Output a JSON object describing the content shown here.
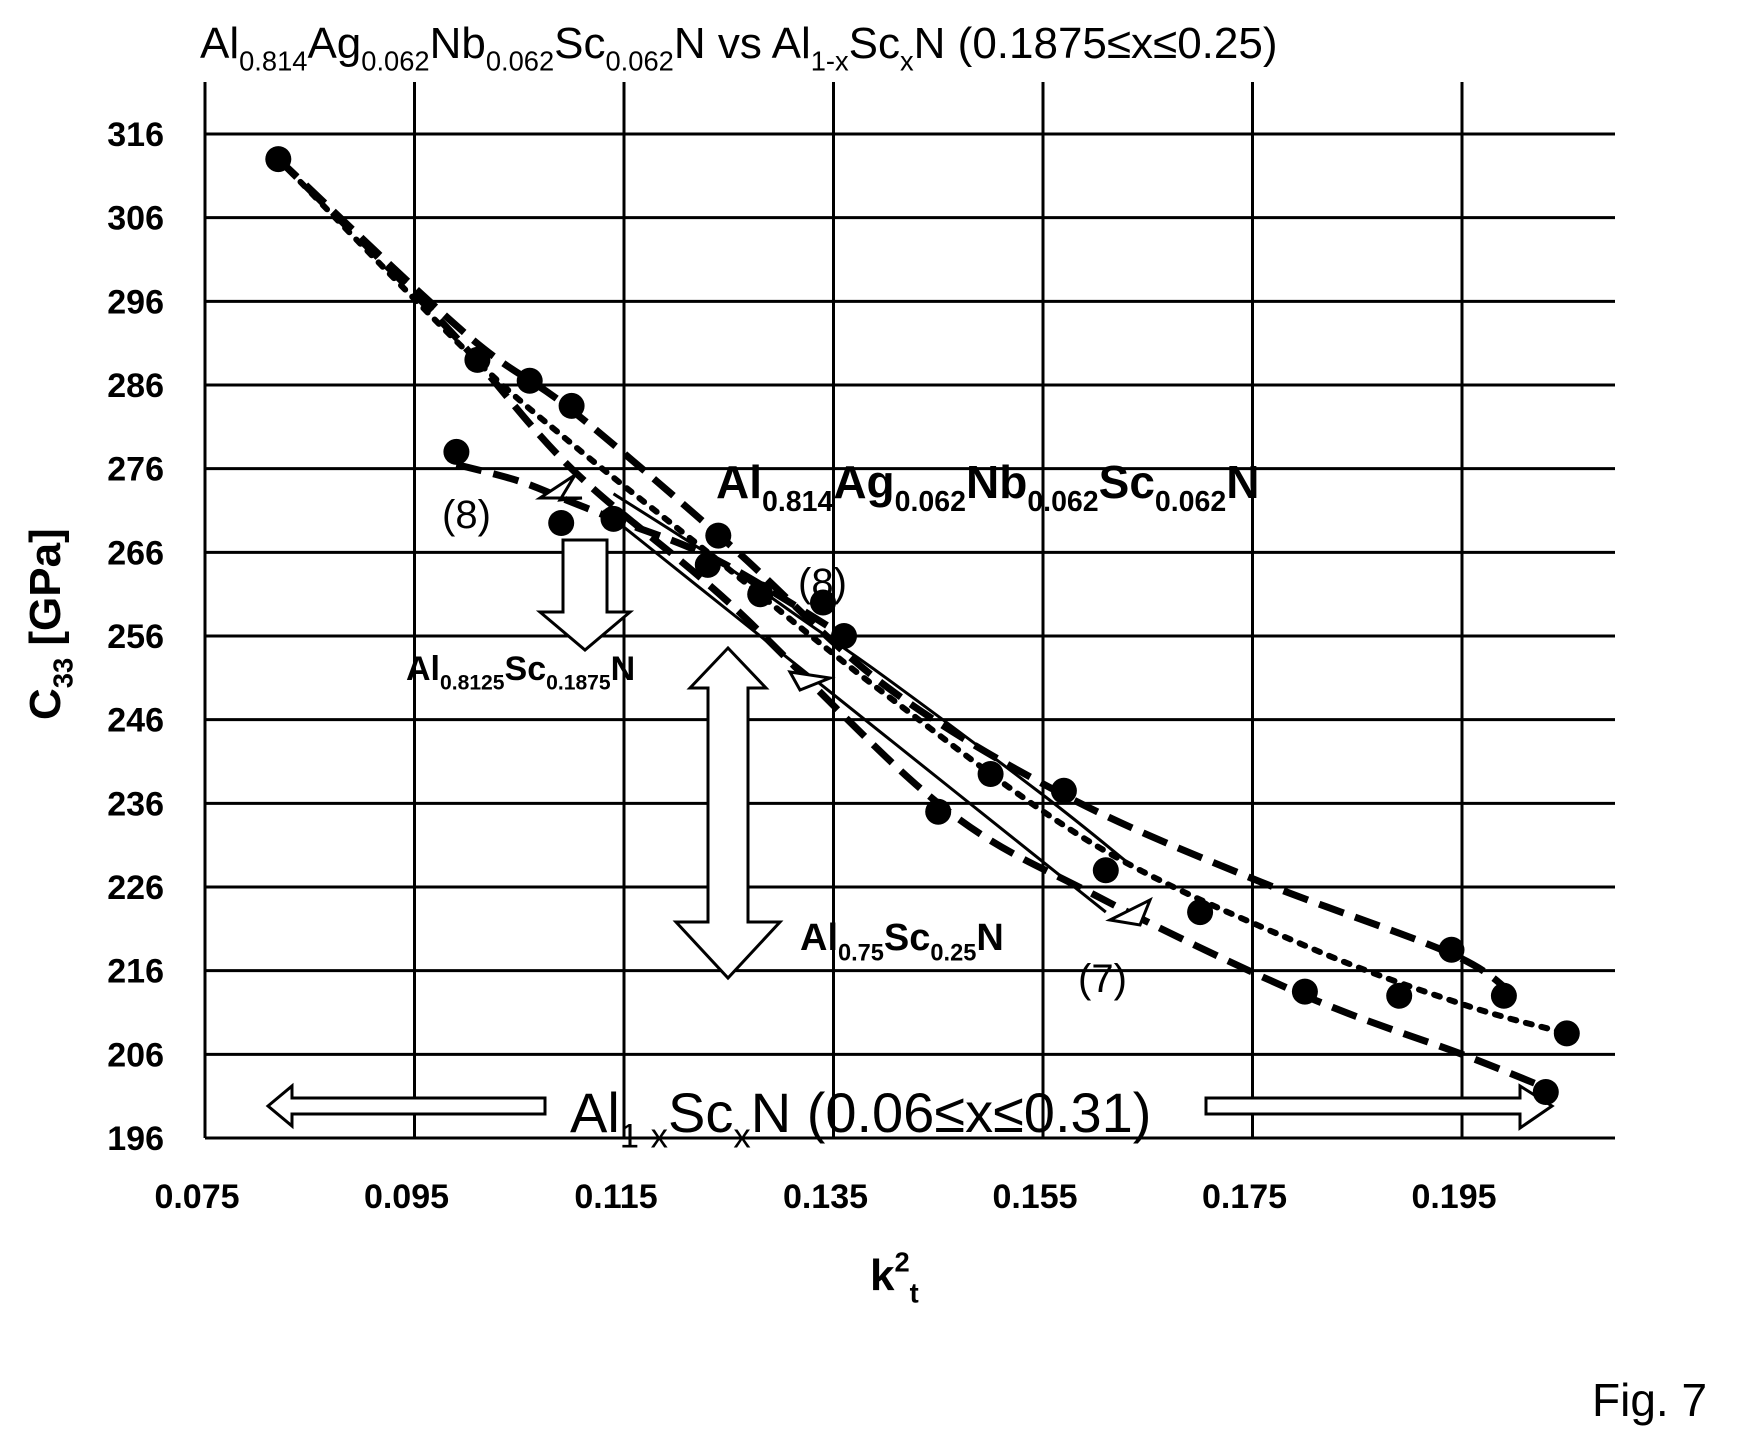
{
  "chart_data": {
    "type": "scatter",
    "title": {
      "parts": [
        {
          "t": "Al",
          "s": ""
        },
        {
          "t": "0.814",
          "s": "sub"
        },
        {
          "t": "Ag",
          "s": ""
        },
        {
          "t": "0.062",
          "s": "sub"
        },
        {
          "t": "Nb",
          "s": ""
        },
        {
          "t": "0.062",
          "s": "sub"
        },
        {
          "t": "Sc",
          "s": ""
        },
        {
          "t": "0.062",
          "s": "sub"
        },
        {
          "t": "N vs Al",
          "s": ""
        },
        {
          "t": "1-x",
          "s": "sub"
        },
        {
          "t": "Sc",
          "s": ""
        },
        {
          "t": "x",
          "s": "sub"
        },
        {
          "t": "N (0.1875≤x≤0.25)",
          "s": ""
        }
      ]
    },
    "xlabel": {
      "parts": [
        {
          "t": "k",
          "s": ""
        },
        {
          "t": "2",
          "s": "sup"
        },
        {
          "t": "t",
          "s": "sub"
        }
      ]
    },
    "ylabel": {
      "parts": [
        {
          "t": "C",
          "s": ""
        },
        {
          "t": "33",
          "s": "sub"
        },
        {
          "t": " [GPa]",
          "s": ""
        }
      ]
    },
    "xlim": [
      0.075,
      0.21
    ],
    "ylim": [
      196,
      316
    ],
    "xticks": [
      "0.075",
      "0.095",
      "0.115",
      "0.135",
      "0.155",
      "0.175",
      "0.195"
    ],
    "xtick_values": [
      0.075,
      0.095,
      0.115,
      0.135,
      0.155,
      0.175,
      0.195
    ],
    "yticks": [
      "196",
      "206",
      "216",
      "226",
      "236",
      "246",
      "256",
      "266",
      "276",
      "286",
      "296",
      "306",
      "316"
    ],
    "ytick_values": [
      196,
      206,
      216,
      226,
      236,
      246,
      256,
      266,
      276,
      286,
      296,
      306,
      316
    ],
    "grid": true,
    "points": [
      [
        0.082,
        313
      ],
      [
        0.101,
        289
      ],
      [
        0.106,
        286.5
      ],
      [
        0.11,
        283.5
      ],
      [
        0.099,
        278
      ],
      [
        0.109,
        269.5
      ],
      [
        0.114,
        270
      ],
      [
        0.124,
        268
      ],
      [
        0.123,
        264.5
      ],
      [
        0.128,
        261
      ],
      [
        0.134,
        260
      ],
      [
        0.136,
        256
      ],
      [
        0.145,
        235
      ],
      [
        0.15,
        239.5
      ],
      [
        0.157,
        237.5
      ],
      [
        0.161,
        228
      ],
      [
        0.17,
        223
      ],
      [
        0.18,
        213.5
      ],
      [
        0.189,
        213
      ],
      [
        0.194,
        218.5
      ],
      [
        0.199,
        213
      ],
      [
        0.203,
        201.5
      ],
      [
        0.205,
        208.5
      ]
    ],
    "curves": [
      {
        "style": "dashed",
        "points": [
          [
            0.082,
            313
          ],
          [
            0.1,
            292
          ],
          [
            0.11,
            283
          ],
          [
            0.125,
            267
          ],
          [
            0.14,
            250
          ],
          [
            0.157,
            237
          ],
          [
            0.175,
            227
          ],
          [
            0.194,
            218
          ],
          [
            0.2,
            213
          ]
        ]
      },
      {
        "style": "dotted",
        "points": [
          [
            0.082,
            313
          ],
          [
            0.1,
            290
          ],
          [
            0.11,
            279
          ],
          [
            0.123,
            266
          ],
          [
            0.14,
            249
          ],
          [
            0.16,
            231
          ],
          [
            0.18,
            219
          ],
          [
            0.195,
            212
          ],
          [
            0.205,
            208.5
          ]
        ]
      },
      {
        "style": "dashed",
        "points": [
          [
            0.082,
            313
          ],
          [
            0.098,
            293
          ],
          [
            0.11,
            276
          ],
          [
            0.125,
            260
          ],
          [
            0.145,
            236
          ],
          [
            0.16,
            225
          ],
          [
            0.18,
            213
          ],
          [
            0.195,
            206
          ],
          [
            0.203,
            202
          ]
        ]
      },
      {
        "style": "dashed",
        "points": [
          [
            0.099,
            276.5
          ],
          [
            0.105,
            274.5
          ],
          [
            0.11,
            272
          ],
          [
            0.114,
            270
          ],
          [
            0.124,
            265
          ],
          [
            0.136,
            256
          ]
        ]
      },
      {
        "style": "solid",
        "points": [
          [
            0.114,
            273
          ],
          [
            0.124,
            265
          ],
          [
            0.132,
            258
          ],
          [
            0.14,
            251
          ],
          [
            0.155,
            237
          ],
          [
            0.163,
            229
          ]
        ]
      },
      {
        "style": "solid",
        "points": [
          [
            0.113,
            271
          ],
          [
            0.122,
            262
          ],
          [
            0.13,
            254
          ],
          [
            0.14,
            244
          ],
          [
            0.152,
            232
          ],
          [
            0.161,
            223
          ]
        ]
      }
    ],
    "annotations": [
      {
        "id": "label-alagnbscn",
        "parts": [
          {
            "t": "Al",
            "s": ""
          },
          {
            "t": "0.814",
            "s": "sub"
          },
          {
            "t": "Ag",
            "s": ""
          },
          {
            "t": "0.062",
            "s": "sub"
          },
          {
            "t": "Nb",
            "s": ""
          },
          {
            "t": "0.062",
            "s": "sub"
          },
          {
            "t": "Sc",
            "s": ""
          },
          {
            "t": "0.062",
            "s": "sub"
          },
          {
            "t": "N",
            "s": ""
          }
        ]
      },
      {
        "id": "label-al08125",
        "parts": [
          {
            "t": "Al",
            "s": ""
          },
          {
            "t": "0.8125",
            "s": "sub"
          },
          {
            "t": "Sc",
            "s": ""
          },
          {
            "t": "0.1875",
            "s": "sub"
          },
          {
            "t": "N",
            "s": ""
          }
        ]
      },
      {
        "id": "label-al075",
        "parts": [
          {
            "t": "Al",
            "s": ""
          },
          {
            "t": "0.75",
            "s": "sub"
          },
          {
            "t": "Sc",
            "s": ""
          },
          {
            "t": "0.25",
            "s": "sub"
          },
          {
            "t": "N",
            "s": ""
          }
        ]
      },
      {
        "id": "label-range",
        "parts": [
          {
            "t": "Al",
            "s": ""
          },
          {
            "t": "1-x",
            "s": "sub"
          },
          {
            "t": "Sc",
            "s": ""
          },
          {
            "t": "x",
            "s": "sub"
          },
          {
            "t": "N (0.06≤x≤0.31)",
            "s": ""
          }
        ]
      },
      {
        "id": "label-8-left",
        "parts": [
          {
            "t": "(8)",
            "s": ""
          }
        ]
      },
      {
        "id": "label-8-right",
        "parts": [
          {
            "t": "(8)",
            "s": ""
          }
        ]
      },
      {
        "id": "label-7",
        "parts": [
          {
            "t": "(7)",
            "s": ""
          }
        ]
      }
    ]
  },
  "figure_label": "Fig. 7"
}
